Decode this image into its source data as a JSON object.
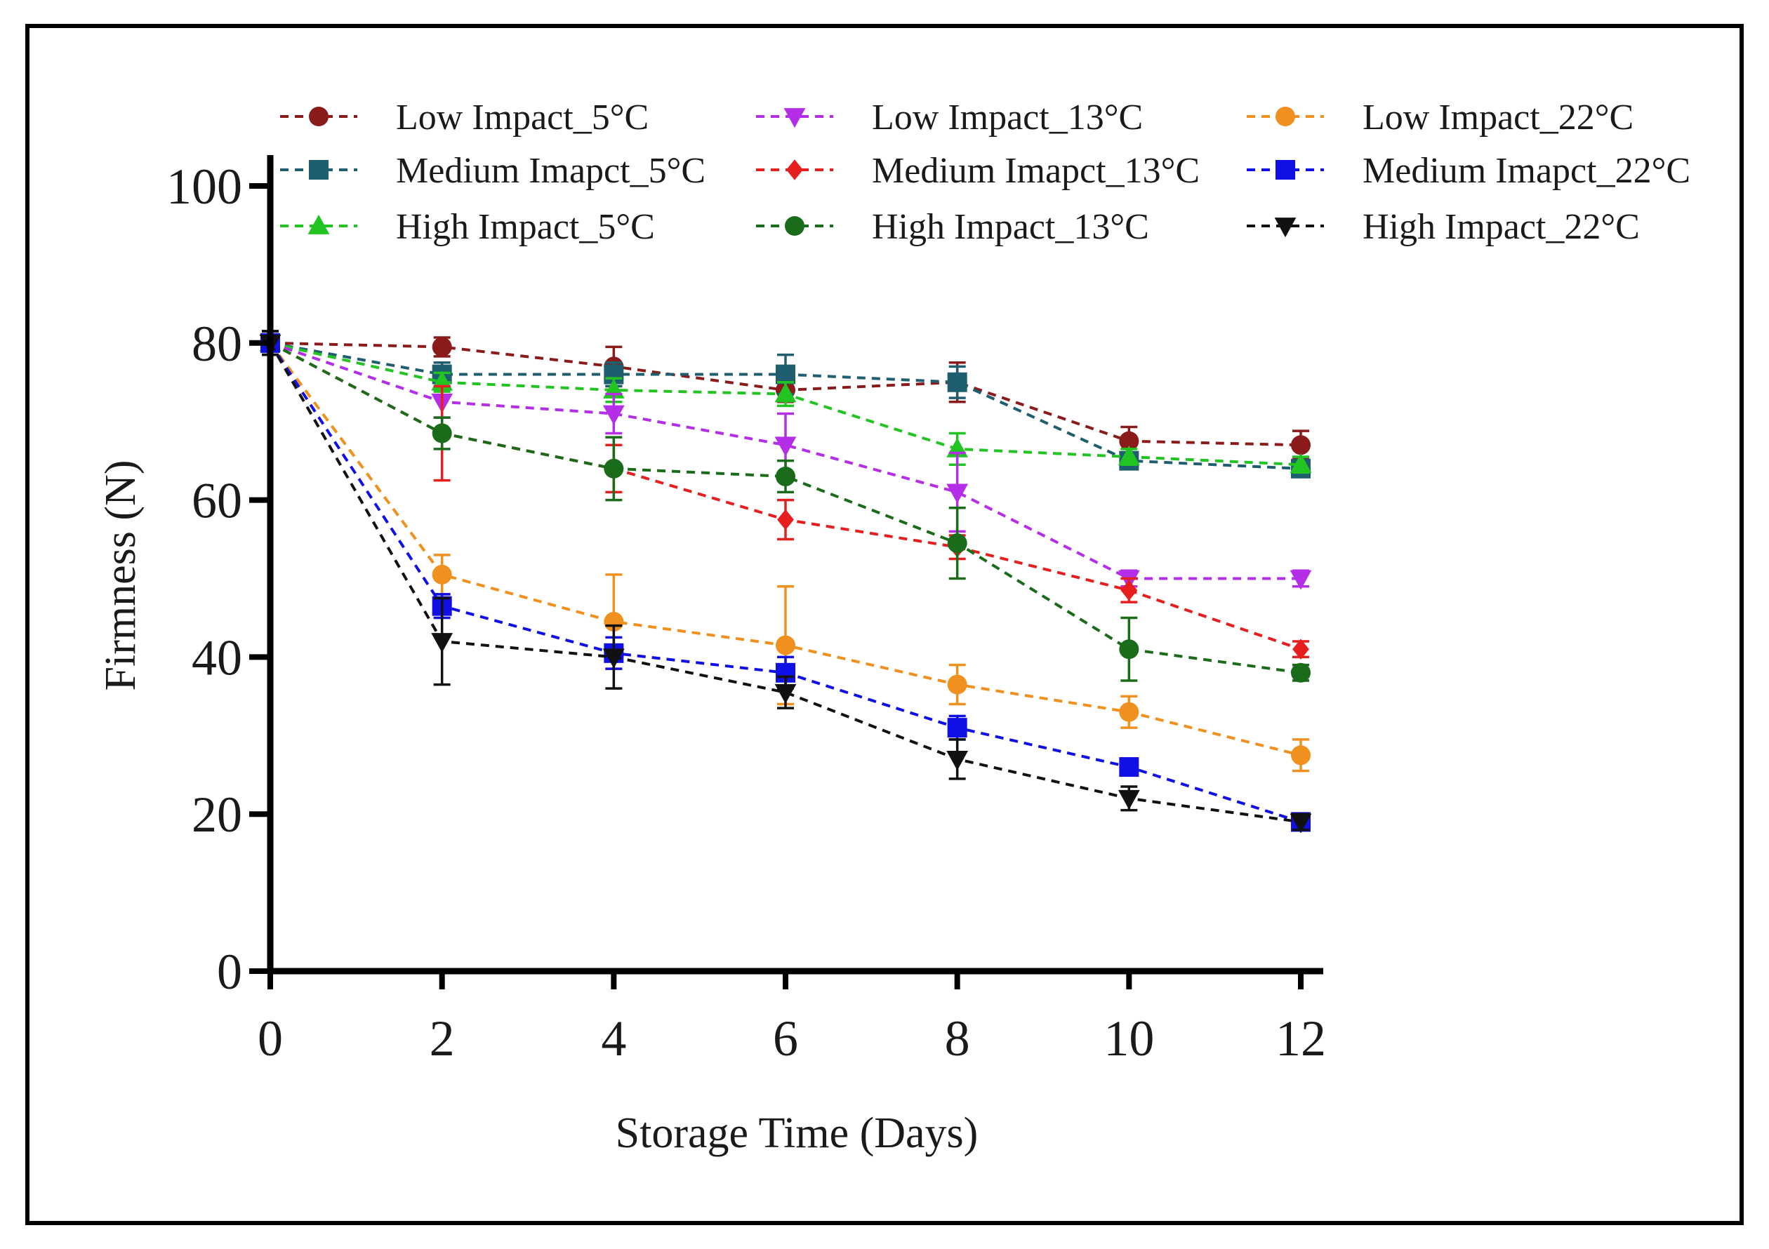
{
  "chart_data": {
    "type": "line",
    "xlabel": "Storage Time (Days)",
    "ylabel": "Firmness (N)",
    "x": [
      0,
      2,
      4,
      6,
      8,
      10,
      12
    ],
    "xticks": [
      "0",
      "2",
      "4",
      "6",
      "8",
      "10",
      "12"
    ],
    "yticks": [
      "0",
      "20",
      "40",
      "60",
      "80",
      "100"
    ],
    "xlim": [
      0,
      12
    ],
    "ylim": [
      0,
      100
    ],
    "grid": false,
    "legend_position": "top",
    "series": [
      {
        "name": "Low Impact_5°C",
        "color": "#8b1a1a",
        "marker": "circle",
        "values": [
          80,
          79.5,
          77,
          74,
          75,
          67.5,
          67
        ],
        "errors": [
          1.5,
          1.2,
          2.5,
          1.5,
          2.5,
          1.8,
          1.8
        ]
      },
      {
        "name": "Medium Imapct_5°C",
        "color": "#1f5e6e",
        "marker": "square",
        "values": [
          80,
          76,
          76,
          76,
          75,
          65,
          64
        ],
        "errors": [
          1.5,
          1.5,
          1.5,
          2.5,
          2.0,
          1.0,
          1.0
        ]
      },
      {
        "name": "High Impact_5°C",
        "color": "#22c422",
        "marker": "triangle-up",
        "values": [
          80,
          75,
          74,
          73.5,
          66.5,
          65.5,
          64.5
        ],
        "errors": [
          1.5,
          1.2,
          1.5,
          1.5,
          2.0,
          1.0,
          1.0
        ]
      },
      {
        "name": "Low Impact_13°C",
        "color": "#b32ee6",
        "marker": "triangle-down",
        "values": [
          80,
          72.5,
          71,
          67,
          61,
          50,
          50
        ],
        "errors": [
          1.5,
          2.0,
          2.5,
          4.0,
          5.0,
          1.0,
          1.0
        ]
      },
      {
        "name": "Medium Imapct_13°C",
        "color": "#e61e1e",
        "marker": "diamond",
        "values": [
          80,
          68.5,
          64,
          57.5,
          54,
          48.5,
          41
        ],
        "errors": [
          1.5,
          6.0,
          3.0,
          2.5,
          1.5,
          1.5,
          1.0
        ]
      },
      {
        "name": "High Impact_13°C",
        "color": "#1a6b1a",
        "marker": "circle",
        "values": [
          80,
          68.5,
          64,
          63,
          54.5,
          41,
          38
        ],
        "errors": [
          1.5,
          2.0,
          4.0,
          2.0,
          4.5,
          4.0,
          1.0
        ]
      },
      {
        "name": "Low Impact_22°C",
        "color": "#f0901e",
        "marker": "circle",
        "values": [
          80,
          50.5,
          44.5,
          41.5,
          36.5,
          33,
          27.5
        ],
        "errors": [
          1.5,
          2.5,
          6.0,
          7.5,
          2.5,
          2.0,
          2.0
        ]
      },
      {
        "name": "Medium Imapct_22°C",
        "color": "#1010e6",
        "marker": "square",
        "values": [
          80,
          46.5,
          40.5,
          38,
          31,
          26,
          19
        ],
        "errors": [
          1.5,
          1.5,
          2.0,
          2.0,
          1.5,
          1.0,
          1.0
        ]
      },
      {
        "name": "High Impact_22°C",
        "color": "#111111",
        "marker": "triangle-down",
        "values": [
          80,
          42,
          40,
          35.5,
          27,
          22,
          19
        ],
        "errors": [
          1.5,
          5.5,
          4.0,
          2.0,
          2.5,
          1.5,
          1.0
        ]
      }
    ]
  }
}
